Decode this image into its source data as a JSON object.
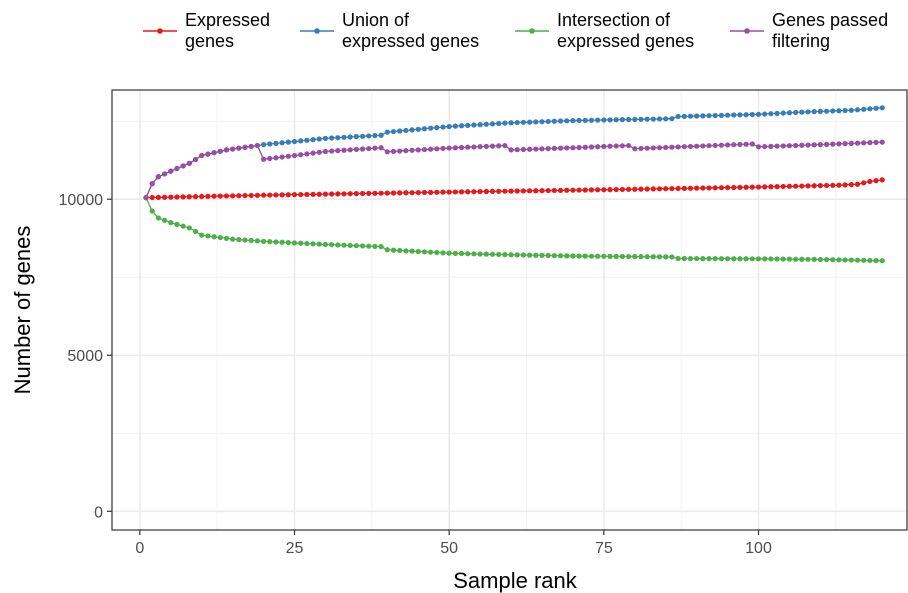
{
  "chart_data": {
    "type": "line",
    "title": "",
    "xlabel": "Sample rank",
    "ylabel": "Number of genes",
    "xlim": [
      -4.5,
      124
    ],
    "ylim": [
      -600,
      13500
    ],
    "x_ticks": [
      0,
      25,
      50,
      75,
      100
    ],
    "y_ticks": [
      0,
      5000,
      10000
    ],
    "x_tick_labels": [
      "0",
      "25",
      "50",
      "75",
      "100"
    ],
    "y_tick_labels": [
      "0",
      "5000",
      "10000"
    ],
    "grid": true,
    "legend_position": "top",
    "n_points": 120,
    "series": [
      {
        "name": "Expressed genes",
        "name_lines": [
          "Expressed",
          "genes"
        ],
        "color": "#E41A1C",
        "anchors": [
          [
            1,
            10050
          ],
          [
            20,
            10130
          ],
          [
            50,
            10230
          ],
          [
            80,
            10320
          ],
          [
            100,
            10390
          ],
          [
            113,
            10450
          ],
          [
            116,
            10480
          ],
          [
            118,
            10570
          ],
          [
            120,
            10620
          ]
        ]
      },
      {
        "name": "Union of expressed genes",
        "name_lines": [
          "Union of",
          "expressed genes"
        ],
        "color": "#377EB8",
        "anchors": [
          [
            1,
            10050
          ],
          [
            2,
            10500
          ],
          [
            3,
            10720
          ],
          [
            5,
            10900
          ],
          [
            8,
            11150
          ],
          [
            10,
            11400
          ],
          [
            14,
            11580
          ],
          [
            19,
            11720
          ],
          [
            20,
            11750
          ],
          [
            25,
            11850
          ],
          [
            30,
            11950
          ],
          [
            39,
            12050
          ],
          [
            40,
            12150
          ],
          [
            50,
            12330
          ],
          [
            60,
            12450
          ],
          [
            70,
            12520
          ],
          [
            86,
            12580
          ],
          [
            87,
            12650
          ],
          [
            100,
            12720
          ],
          [
            108,
            12800
          ],
          [
            115,
            12850
          ],
          [
            120,
            12930
          ]
        ]
      },
      {
        "name": "Intersection of expressed genes",
        "name_lines": [
          "Intersection of",
          "expressed genes"
        ],
        "color": "#4DAF4A",
        "anchors": [
          [
            1,
            10050
          ],
          [
            2,
            9620
          ],
          [
            3,
            9400
          ],
          [
            5,
            9250
          ],
          [
            8,
            9080
          ],
          [
            10,
            8850
          ],
          [
            15,
            8720
          ],
          [
            20,
            8650
          ],
          [
            30,
            8550
          ],
          [
            39,
            8480
          ],
          [
            40,
            8380
          ],
          [
            50,
            8270
          ],
          [
            60,
            8220
          ],
          [
            70,
            8180
          ],
          [
            86,
            8150
          ],
          [
            87,
            8100
          ],
          [
            100,
            8090
          ],
          [
            110,
            8070
          ],
          [
            120,
            8030
          ]
        ]
      },
      {
        "name": "Genes passed filtering",
        "name_lines": [
          "Genes passed",
          "filtering"
        ],
        "color": "#984EA3",
        "anchors": [
          [
            1,
            10050
          ],
          [
            2,
            10500
          ],
          [
            3,
            10720
          ],
          [
            5,
            10900
          ],
          [
            8,
            11150
          ],
          [
            10,
            11400
          ],
          [
            14,
            11580
          ],
          [
            19,
            11720
          ],
          [
            20,
            11280
          ],
          [
            25,
            11400
          ],
          [
            30,
            11530
          ],
          [
            39,
            11650
          ],
          [
            40,
            11520
          ],
          [
            50,
            11640
          ],
          [
            59,
            11720
          ],
          [
            60,
            11580
          ],
          [
            70,
            11650
          ],
          [
            79,
            11720
          ],
          [
            80,
            11620
          ],
          [
            90,
            11700
          ],
          [
            99,
            11770
          ],
          [
            100,
            11680
          ],
          [
            110,
            11750
          ],
          [
            120,
            11830
          ]
        ]
      }
    ]
  }
}
